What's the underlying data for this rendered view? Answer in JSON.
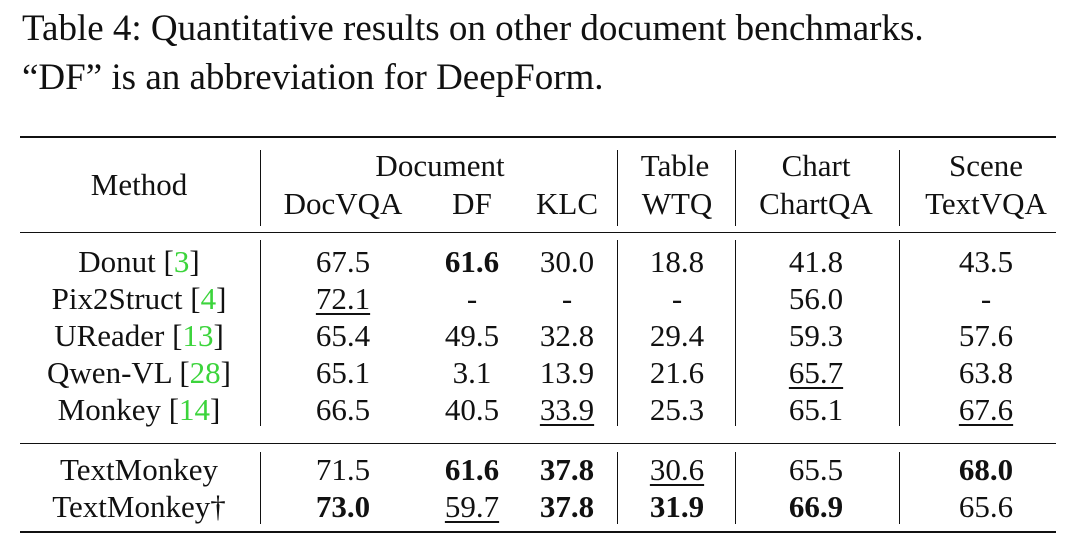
{
  "caption": {
    "line1": "Table 4: Quantitative results on other document benchmarks.",
    "line2": "“DF” is an abbreviation for DeepForm."
  },
  "header": {
    "method": "Method",
    "groups": [
      "Document",
      "Table",
      "Chart",
      "Scene"
    ],
    "columns": [
      "DocVQA",
      "DF",
      "KLC",
      "WTQ",
      "ChartQA",
      "TextVQA"
    ]
  },
  "rows": [
    {
      "name": "Donut",
      "cite": "3",
      "values": [
        "67.5",
        "61.6",
        "30.0",
        "18.8",
        "41.8",
        "43.5"
      ],
      "bold": [
        false,
        true,
        false,
        false,
        false,
        false
      ],
      "underline": [
        false,
        false,
        false,
        false,
        false,
        false
      ]
    },
    {
      "name": "Pix2Struct",
      "cite": "4",
      "values": [
        "72.1",
        "-",
        "-",
        "-",
        "56.0",
        "-"
      ],
      "bold": [
        false,
        false,
        false,
        false,
        false,
        false
      ],
      "underline": [
        true,
        false,
        false,
        false,
        false,
        false
      ]
    },
    {
      "name": "UReader",
      "cite": "13",
      "values": [
        "65.4",
        "49.5",
        "32.8",
        "29.4",
        "59.3",
        "57.6"
      ],
      "bold": [
        false,
        false,
        false,
        false,
        false,
        false
      ],
      "underline": [
        false,
        false,
        false,
        false,
        false,
        false
      ]
    },
    {
      "name": "Qwen-VL",
      "cite": "28",
      "values": [
        "65.1",
        "3.1",
        "13.9",
        "21.6",
        "65.7",
        "63.8"
      ],
      "bold": [
        false,
        false,
        false,
        false,
        false,
        false
      ],
      "underline": [
        false,
        false,
        false,
        false,
        true,
        false
      ]
    },
    {
      "name": "Monkey",
      "cite": "14",
      "values": [
        "66.5",
        "40.5",
        "33.9",
        "25.3",
        "65.1",
        "67.6"
      ],
      "bold": [
        false,
        false,
        false,
        false,
        false,
        false
      ],
      "underline": [
        false,
        false,
        true,
        false,
        false,
        true
      ]
    },
    {
      "name": "TextMonkey",
      "cite": "",
      "values": [
        "71.5",
        "61.6",
        "37.8",
        "30.6",
        "65.5",
        "68.0"
      ],
      "bold": [
        false,
        true,
        true,
        false,
        false,
        true
      ],
      "underline": [
        false,
        false,
        false,
        true,
        false,
        false
      ]
    },
    {
      "name": "TextMonkey†",
      "cite": "",
      "values": [
        "73.0",
        "59.7",
        "37.8",
        "31.9",
        "66.9",
        "65.6"
      ],
      "bold": [
        true,
        false,
        true,
        true,
        true,
        false
      ],
      "underline": [
        false,
        true,
        false,
        false,
        false,
        false
      ]
    }
  ]
}
